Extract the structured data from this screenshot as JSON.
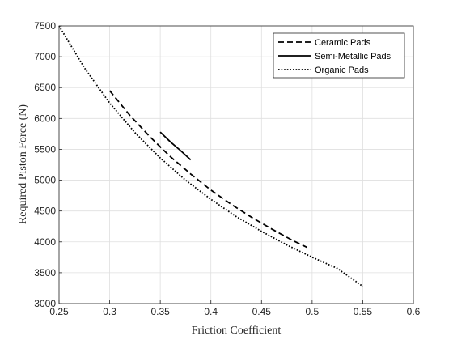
{
  "chart_data": {
    "type": "line",
    "title": "",
    "xlabel": "Friction Coefficient",
    "ylabel": "Required Piston Force (N)",
    "xlim": [
      0.25,
      0.6
    ],
    "ylim": [
      3000,
      7500
    ],
    "xticks": [
      "0.25",
      "0.3",
      "0.35",
      "0.4",
      "0.45",
      "0.5",
      "0.55",
      "0.6"
    ],
    "yticks": [
      "3000",
      "3500",
      "4000",
      "4500",
      "5000",
      "5500",
      "6000",
      "6500",
      "7000",
      "7500"
    ],
    "grid": true,
    "legend_position": "top-right",
    "series": [
      {
        "name": "Ceramic Pads",
        "style": "dashed",
        "color": "#000000",
        "x": [
          0.3,
          0.32,
          0.34,
          0.36,
          0.38,
          0.4,
          0.42,
          0.44,
          0.46,
          0.48,
          0.495
        ],
        "y": [
          6450,
          6050,
          5700,
          5380,
          5100,
          4840,
          4610,
          4400,
          4210,
          4030,
          3910
        ]
      },
      {
        "name": "Semi-Metallic Pads",
        "style": "solid",
        "color": "#000000",
        "x": [
          0.35,
          0.36,
          0.37,
          0.38
        ],
        "y": [
          5780,
          5620,
          5480,
          5330
        ]
      },
      {
        "name": "Organic Pads",
        "style": "dotted",
        "color": "#000000",
        "x": [
          0.25,
          0.275,
          0.3,
          0.325,
          0.35,
          0.375,
          0.4,
          0.425,
          0.45,
          0.475,
          0.5,
          0.525,
          0.55
        ],
        "y": [
          7500,
          6820,
          6250,
          5770,
          5360,
          5000,
          4690,
          4410,
          4170,
          3950,
          3750,
          3570,
          3280
        ]
      }
    ]
  }
}
